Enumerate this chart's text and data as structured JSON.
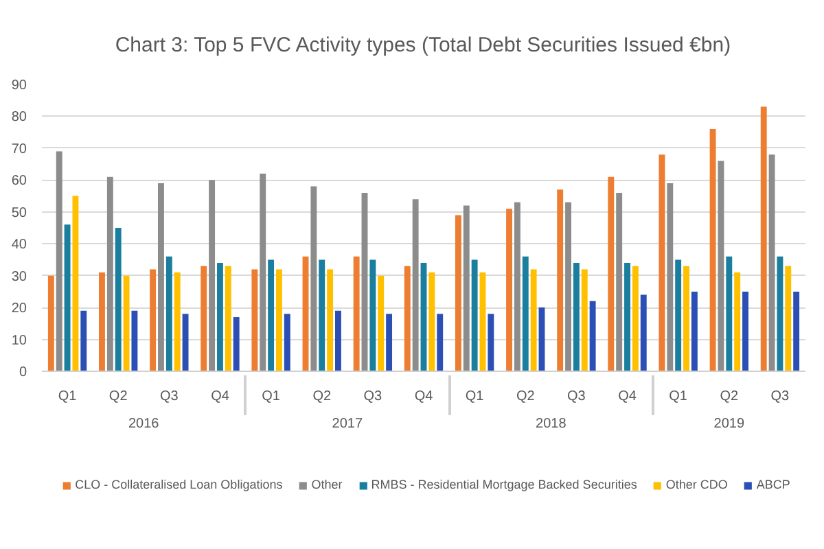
{
  "chart_data": {
    "type": "bar",
    "title": "Chart 3: Top 5 FVC Activity types (Total Debt Securities Issued €bn)",
    "categories": [
      [
        "2016",
        "Q1"
      ],
      [
        null,
        "Q2"
      ],
      [
        null,
        "Q3"
      ],
      [
        null,
        "Q4"
      ],
      [
        "2017",
        "Q1"
      ],
      [
        null,
        "Q2"
      ],
      [
        null,
        "Q3"
      ],
      [
        null,
        "Q4"
      ],
      [
        "2018",
        "Q1"
      ],
      [
        null,
        "Q2"
      ],
      [
        null,
        "Q3"
      ],
      [
        null,
        "Q4"
      ],
      [
        "2019",
        "Q1"
      ],
      [
        null,
        "Q2"
      ],
      [
        null,
        "Q3"
      ]
    ],
    "series": [
      {
        "name": "CLO - Collateralised Loan Obligations",
        "color": "#ed7d31",
        "values": [
          30,
          31,
          32,
          33,
          32,
          36,
          36,
          33,
          49,
          51,
          57,
          61,
          68,
          76,
          83
        ]
      },
      {
        "name": "Other",
        "color": "#8c8c8c",
        "values": [
          69,
          61,
          59,
          60,
          62,
          58,
          56,
          54,
          52,
          53,
          53,
          56,
          59,
          66,
          68
        ]
      },
      {
        "name": "RMBS - Residential Mortgage Backed Securities",
        "color": "#1a7e9e",
        "values": [
          46,
          45,
          36,
          34,
          35,
          35,
          35,
          34,
          35,
          36,
          34,
          34,
          35,
          36,
          36
        ]
      },
      {
        "name": "Other CDO",
        "color": "#ffc000",
        "values": [
          55,
          30,
          31,
          33,
          32,
          32,
          30,
          31,
          31,
          32,
          32,
          33,
          33,
          31,
          33
        ]
      },
      {
        "name": "ABCP",
        "color": "#2b4fb5",
        "values": [
          19,
          19,
          18,
          17,
          18,
          19,
          18,
          18,
          18,
          20,
          22,
          24,
          25,
          25,
          25
        ]
      }
    ],
    "ylim": [
      0,
      90
    ],
    "yticks": [
      0,
      10,
      20,
      30,
      40,
      50,
      60,
      70,
      80,
      90
    ],
    "grid": "y",
    "legend": "bottom"
  }
}
